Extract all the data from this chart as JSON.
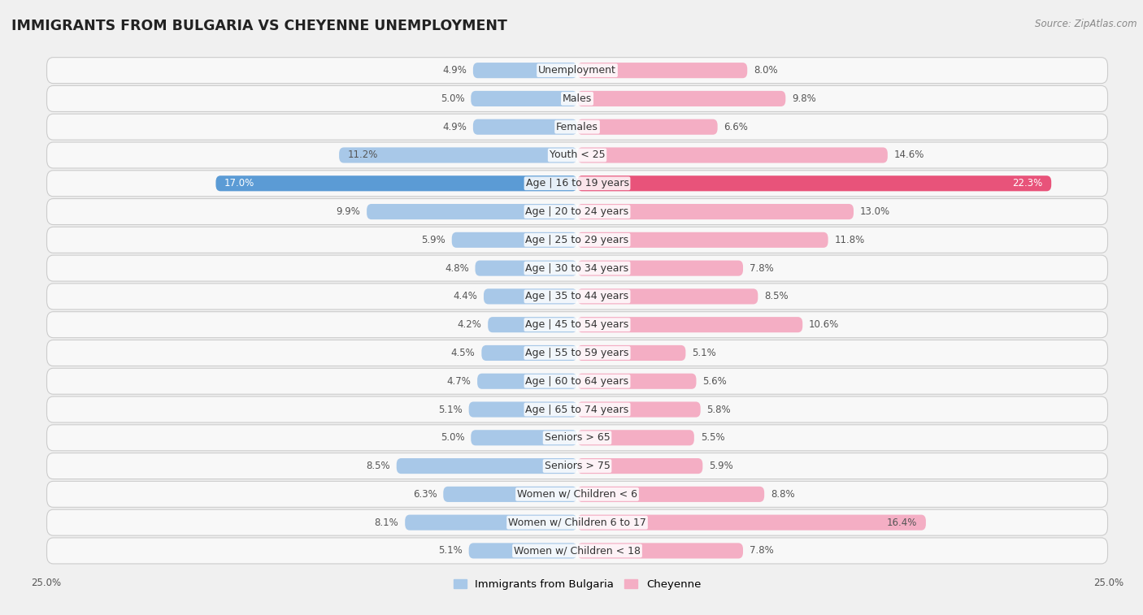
{
  "title": "IMMIGRANTS FROM BULGARIA VS CHEYENNE UNEMPLOYMENT",
  "source": "Source: ZipAtlas.com",
  "categories": [
    "Unemployment",
    "Males",
    "Females",
    "Youth < 25",
    "Age | 16 to 19 years",
    "Age | 20 to 24 years",
    "Age | 25 to 29 years",
    "Age | 30 to 34 years",
    "Age | 35 to 44 years",
    "Age | 45 to 54 years",
    "Age | 55 to 59 years",
    "Age | 60 to 64 years",
    "Age | 65 to 74 years",
    "Seniors > 65",
    "Seniors > 75",
    "Women w/ Children < 6",
    "Women w/ Children 6 to 17",
    "Women w/ Children < 18"
  ],
  "bulgaria_values": [
    4.9,
    5.0,
    4.9,
    11.2,
    17.0,
    9.9,
    5.9,
    4.8,
    4.4,
    4.2,
    4.5,
    4.7,
    5.1,
    5.0,
    8.5,
    6.3,
    8.1,
    5.1
  ],
  "cheyenne_values": [
    8.0,
    9.8,
    6.6,
    14.6,
    22.3,
    13.0,
    11.8,
    7.8,
    8.5,
    10.6,
    5.1,
    5.6,
    5.8,
    5.5,
    5.9,
    8.8,
    16.4,
    7.8
  ],
  "bulgaria_color": "#a8c8e8",
  "cheyenne_color": "#f4aec4",
  "highlight_bulgaria_color": "#5b9bd5",
  "highlight_cheyenne_color": "#e8537a",
  "xlim": 25.0,
  "background_color": "#f0f0f0",
  "row_bg_color": "#e8e8e8",
  "bar_bg_color": "#f8f8f8",
  "title_fontsize": 12.5,
  "label_fontsize": 9,
  "value_fontsize": 8.5,
  "legend_fontsize": 9.5
}
